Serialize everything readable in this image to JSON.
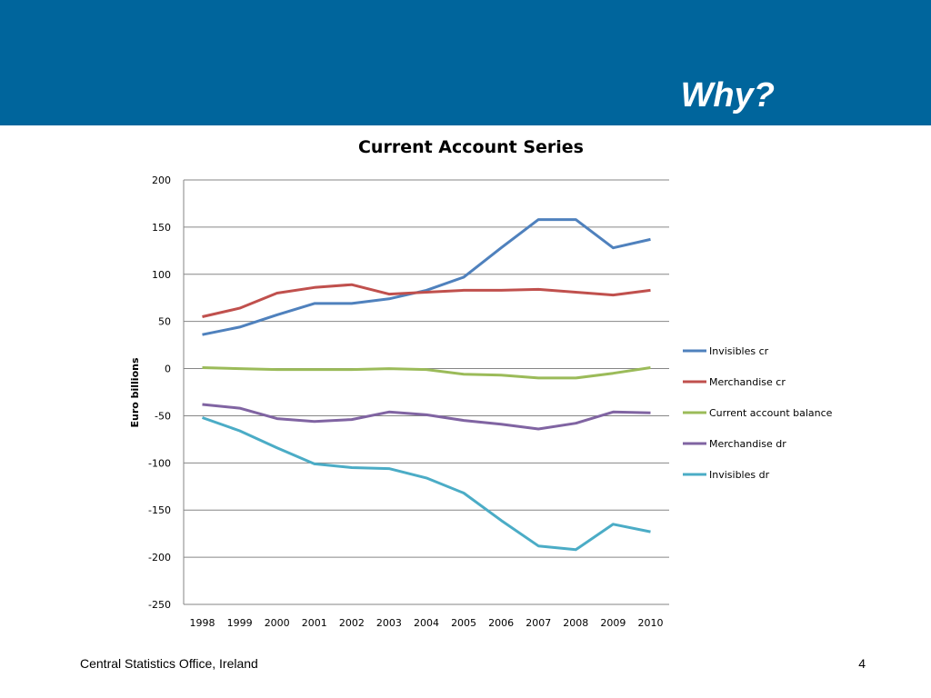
{
  "slide": {
    "title": "Why?",
    "footer": "Central Statistics Office, Ireland",
    "page_number": "4",
    "banner_color": "#00659c"
  },
  "chart_data": {
    "type": "line",
    "title": "Current Account Series",
    "xlabel": "",
    "ylabel": "Euro billions",
    "ylim": [
      -250,
      200
    ],
    "yticks": [
      200,
      150,
      100,
      50,
      0,
      -50,
      -100,
      -150,
      -200,
      -250
    ],
    "grid": true,
    "legend_position": "right",
    "categories": [
      "1998",
      "1999",
      "2000",
      "2001",
      "2002",
      "2003",
      "2004",
      "2005",
      "2006",
      "2007",
      "2008",
      "2009",
      "2010"
    ],
    "series": [
      {
        "name": "Invisibles cr",
        "color": "#4f81bd",
        "values": [
          36,
          44,
          57,
          69,
          69,
          74,
          83,
          97,
          128,
          158,
          158,
          128,
          137
        ]
      },
      {
        "name": "Merchandise cr",
        "color": "#c0504d",
        "values": [
          55,
          64,
          80,
          86,
          89,
          79,
          81,
          83,
          83,
          84,
          81,
          78,
          83
        ]
      },
      {
        "name": "Current account balance",
        "color": "#9bbb59",
        "values": [
          1,
          0,
          -1,
          -1,
          -1,
          0,
          -1,
          -6,
          -7,
          -10,
          -10,
          -5,
          1
        ]
      },
      {
        "name": "Merchandise dr",
        "color": "#8064a2",
        "values": [
          -38,
          -42,
          -53,
          -56,
          -54,
          -46,
          -49,
          -55,
          -59,
          -64,
          -58,
          -46,
          -47
        ]
      },
      {
        "name": "Invisibles dr",
        "color": "#4bacc6",
        "values": [
          -52,
          -66,
          -84,
          -101,
          -105,
          -106,
          -116,
          -132,
          -161,
          -188,
          -192,
          -165,
          -173
        ]
      }
    ]
  }
}
